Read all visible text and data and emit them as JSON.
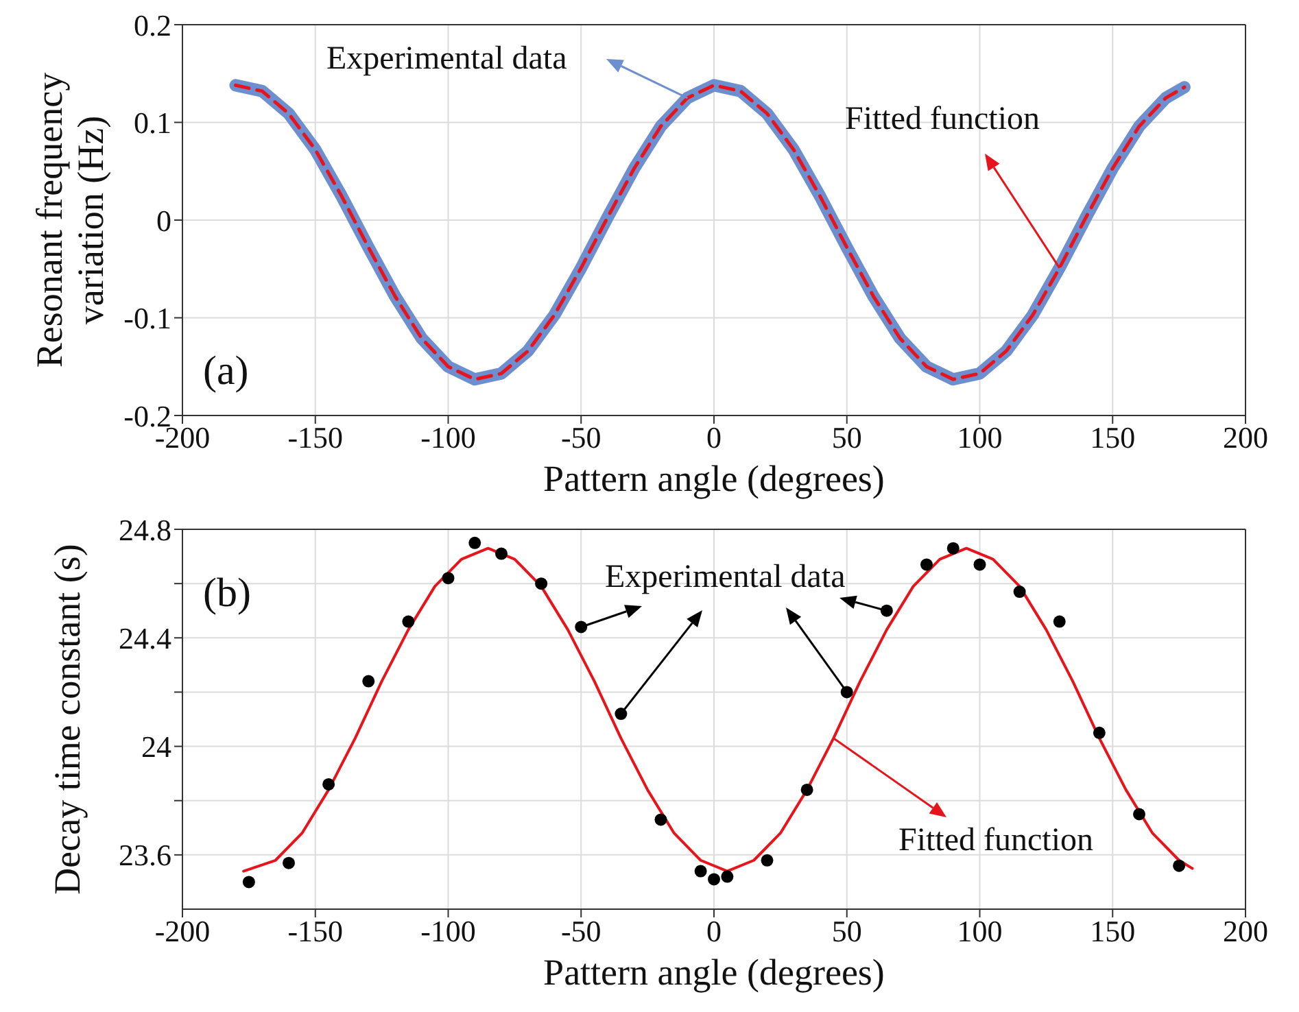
{
  "chart_data": [
    {
      "type": "line",
      "xlabel": "Pattern angle (degrees)",
      "ylabel": "Resonant frequency variation (Hz)",
      "xlim": [
        -200,
        200
      ],
      "xticks": [
        -200,
        -150,
        -100,
        -50,
        0,
        50,
        100,
        150,
        200
      ],
      "ylim": [
        -0.2,
        0.2
      ],
      "yticks": [
        -0.2,
        -0.1,
        0,
        0.1,
        0.2
      ],
      "grid": true,
      "series": [
        {
          "color": "#6e8fcf",
          "x": [
            -180,
            -170,
            -160,
            -150,
            -140,
            -130,
            -120,
            -110,
            -100,
            -90,
            -80,
            -70,
            -60,
            -50,
            -40,
            -30,
            -20,
            -10,
            0,
            10,
            20,
            30,
            40,
            50,
            60,
            70,
            80,
            90,
            100,
            110,
            120,
            130,
            140,
            150,
            160,
            170,
            177
          ],
          "values": [
            0.138,
            0.132,
            0.109,
            0.072,
            0.024,
            -0.028,
            -0.078,
            -0.121,
            -0.15,
            -0.163,
            -0.157,
            -0.134,
            -0.097,
            -0.049,
            0.003,
            0.053,
            0.096,
            0.125,
            0.138,
            0.132,
            0.109,
            0.072,
            0.024,
            -0.028,
            -0.078,
            -0.121,
            -0.15,
            -0.163,
            -0.157,
            -0.134,
            -0.097,
            -0.049,
            0.003,
            0.053,
            0.096,
            0.125,
            0.136
          ]
        },
        {
          "color": "#e8141b",
          "line_style": "dashed",
          "x": [
            -180,
            -170,
            -160,
            -150,
            -140,
            -130,
            -120,
            -110,
            -100,
            -90,
            -80,
            -70,
            -60,
            -50,
            -40,
            -30,
            -20,
            -10,
            0,
            10,
            20,
            30,
            40,
            50,
            60,
            70,
            80,
            90,
            100,
            110,
            120,
            130,
            140,
            150,
            160,
            170,
            177
          ],
          "values": [
            0.138,
            0.132,
            0.109,
            0.072,
            0.024,
            -0.028,
            -0.078,
            -0.121,
            -0.15,
            -0.163,
            -0.157,
            -0.134,
            -0.097,
            -0.049,
            0.003,
            0.053,
            0.096,
            0.125,
            0.138,
            0.132,
            0.109,
            0.072,
            0.024,
            -0.028,
            -0.078,
            -0.121,
            -0.15,
            -0.163,
            -0.157,
            -0.134,
            -0.097,
            -0.049,
            0.003,
            0.053,
            0.096,
            0.125,
            0.136
          ]
        }
      ],
      "annotations": [
        "(a)",
        "Experimental data",
        {
          "text": "Fitted function",
          "x": 130,
          "y": -0.049
        }
      ]
    },
    {
      "type": "line",
      "xlabel": "Pattern angle (degrees)",
      "ylabel": "Decay time constant (s)",
      "xlim": [
        -200,
        200
      ],
      "xticks": [
        -200,
        -150,
        -100,
        -50,
        0,
        50,
        100,
        150,
        200
      ],
      "ylim": [
        23.4,
        24.8
      ],
      "yticks": [
        23.6,
        {
          "value": 23.8,
          "label": null
        },
        24,
        {
          "value": 24.2,
          "label": null
        },
        24.4,
        {
          "value": 24.6,
          "label": null
        },
        24.8
      ],
      "grid": true,
      "series": [
        {
          "type": "scatter",
          "color": "#000000",
          "marker": "circle",
          "x": [
            -175,
            -160,
            -145,
            -130,
            -115,
            -100,
            -90,
            -80,
            -65,
            -50,
            -35,
            -20,
            -5,
            0,
            5,
            20,
            35,
            50,
            65,
            80,
            90,
            100,
            115,
            130,
            145,
            160,
            175
          ],
          "values": [
            23.5,
            23.57,
            23.86,
            24.24,
            24.46,
            24.62,
            24.75,
            24.71,
            24.6,
            24.44,
            24.12,
            23.73,
            23.54,
            23.51,
            23.52,
            23.58,
            23.84,
            24.2,
            24.5,
            24.67,
            24.73,
            24.67,
            24.57,
            24.46,
            24.05,
            23.75,
            23.56
          ]
        },
        {
          "color": "#e8141b",
          "line_style": "solid",
          "x": [
            -177,
            -165,
            -155,
            -145,
            -135,
            -125,
            -115,
            -105,
            -95,
            -85,
            -75,
            -65,
            -55,
            -45,
            -35,
            -25,
            -15,
            -5,
            5,
            15,
            25,
            35,
            45,
            55,
            65,
            75,
            85,
            95,
            105,
            115,
            125,
            135,
            145,
            155,
            165,
            175,
            180
          ],
          "values": [
            23.54,
            23.58,
            23.68,
            23.84,
            24.03,
            24.24,
            24.43,
            24.59,
            24.69,
            24.73,
            24.69,
            24.59,
            24.43,
            24.24,
            24.03,
            23.84,
            23.68,
            23.58,
            23.54,
            23.58,
            23.68,
            23.84,
            24.03,
            24.24,
            24.43,
            24.59,
            24.69,
            24.73,
            24.69,
            24.59,
            24.43,
            24.24,
            24.03,
            23.84,
            23.68,
            23.58,
            23.55
          ]
        }
      ],
      "annotations": [
        "(b)",
        {
          "text": "Experimental data",
          "x": -50,
          "y": 24.44
        },
        {
          "text": "Fitted function",
          "x": 45,
          "y": 24.03
        }
      ]
    }
  ]
}
